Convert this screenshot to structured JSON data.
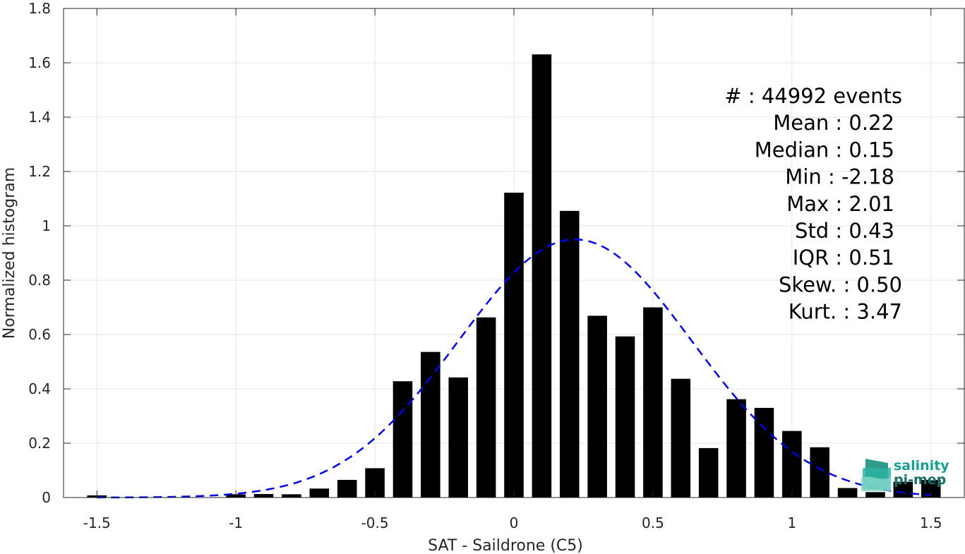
{
  "chart_data": {
    "type": "bar",
    "xlabel": "SAT - Saildrone (C5)",
    "ylabel": "Normalized histogram",
    "xlim": [
      -1.62,
      1.62
    ],
    "ylim": [
      0,
      1.8
    ],
    "xticks": [
      -1.5,
      -1,
      -0.5,
      0,
      0.5,
      1,
      1.5
    ],
    "xtick_labels": [
      "-1.5",
      "-1",
      "-0.5",
      "0",
      "0.5",
      "1",
      "1.5"
    ],
    "yticks": [
      0,
      0.2,
      0.4,
      0.6,
      0.8,
      1,
      1.2,
      1.4,
      1.6,
      1.8
    ],
    "ytick_labels": [
      "0",
      "0.2",
      "0.4",
      "0.6",
      "0.8",
      "1",
      "1.2",
      "1.4",
      "1.6",
      "1.8"
    ],
    "grid": true,
    "bar_color": "#000000",
    "bins": {
      "centers": [
        -1.5,
        -1.4,
        -1.3,
        -1.2,
        -1.1,
        -1.0,
        -0.9,
        -0.8,
        -0.7,
        -0.6,
        -0.5,
        -0.4,
        -0.3,
        -0.2,
        -0.1,
        0.0,
        0.1,
        0.2,
        0.3,
        0.4,
        0.5,
        0.6,
        0.7,
        0.8,
        0.9,
        1.0,
        1.1,
        1.2,
        1.3,
        1.4,
        1.5
      ],
      "values": [
        0.008,
        0.001,
        0.001,
        0.001,
        0.001,
        0.012,
        0.013,
        0.012,
        0.033,
        0.065,
        0.108,
        0.428,
        0.536,
        0.442,
        0.663,
        1.122,
        1.631,
        1.055,
        0.669,
        0.593,
        0.7,
        0.437,
        0.182,
        0.362,
        0.33,
        0.245,
        0.185,
        0.035,
        0.02,
        0.058,
        0.065
      ]
    },
    "fit_curve": {
      "name": "Gaussian fit",
      "style": "dashed",
      "color": "#0000e6",
      "mean": 0.22,
      "std": 0.42,
      "x_range": [
        -1.5,
        1.5
      ]
    },
    "stats": [
      {
        "label": "#  : 44992 events"
      },
      {
        "label": "Mean : 0.22"
      },
      {
        "label": "Median : 0.15"
      },
      {
        "label": "Min : -2.18"
      },
      {
        "label": "Max : 2.01"
      },
      {
        "label": "Std : 0.43"
      },
      {
        "label": "IQR : 0.51"
      },
      {
        "label": "Skew. : 0.50"
      },
      {
        "label": "Kurt. : 3.47"
      }
    ]
  },
  "logo": {
    "line1": "salinity",
    "line2": "pi-mep",
    "icon": "wave-logo-icon",
    "text_color": "#1a9e8f",
    "icon_color": "#2bb3a0"
  }
}
